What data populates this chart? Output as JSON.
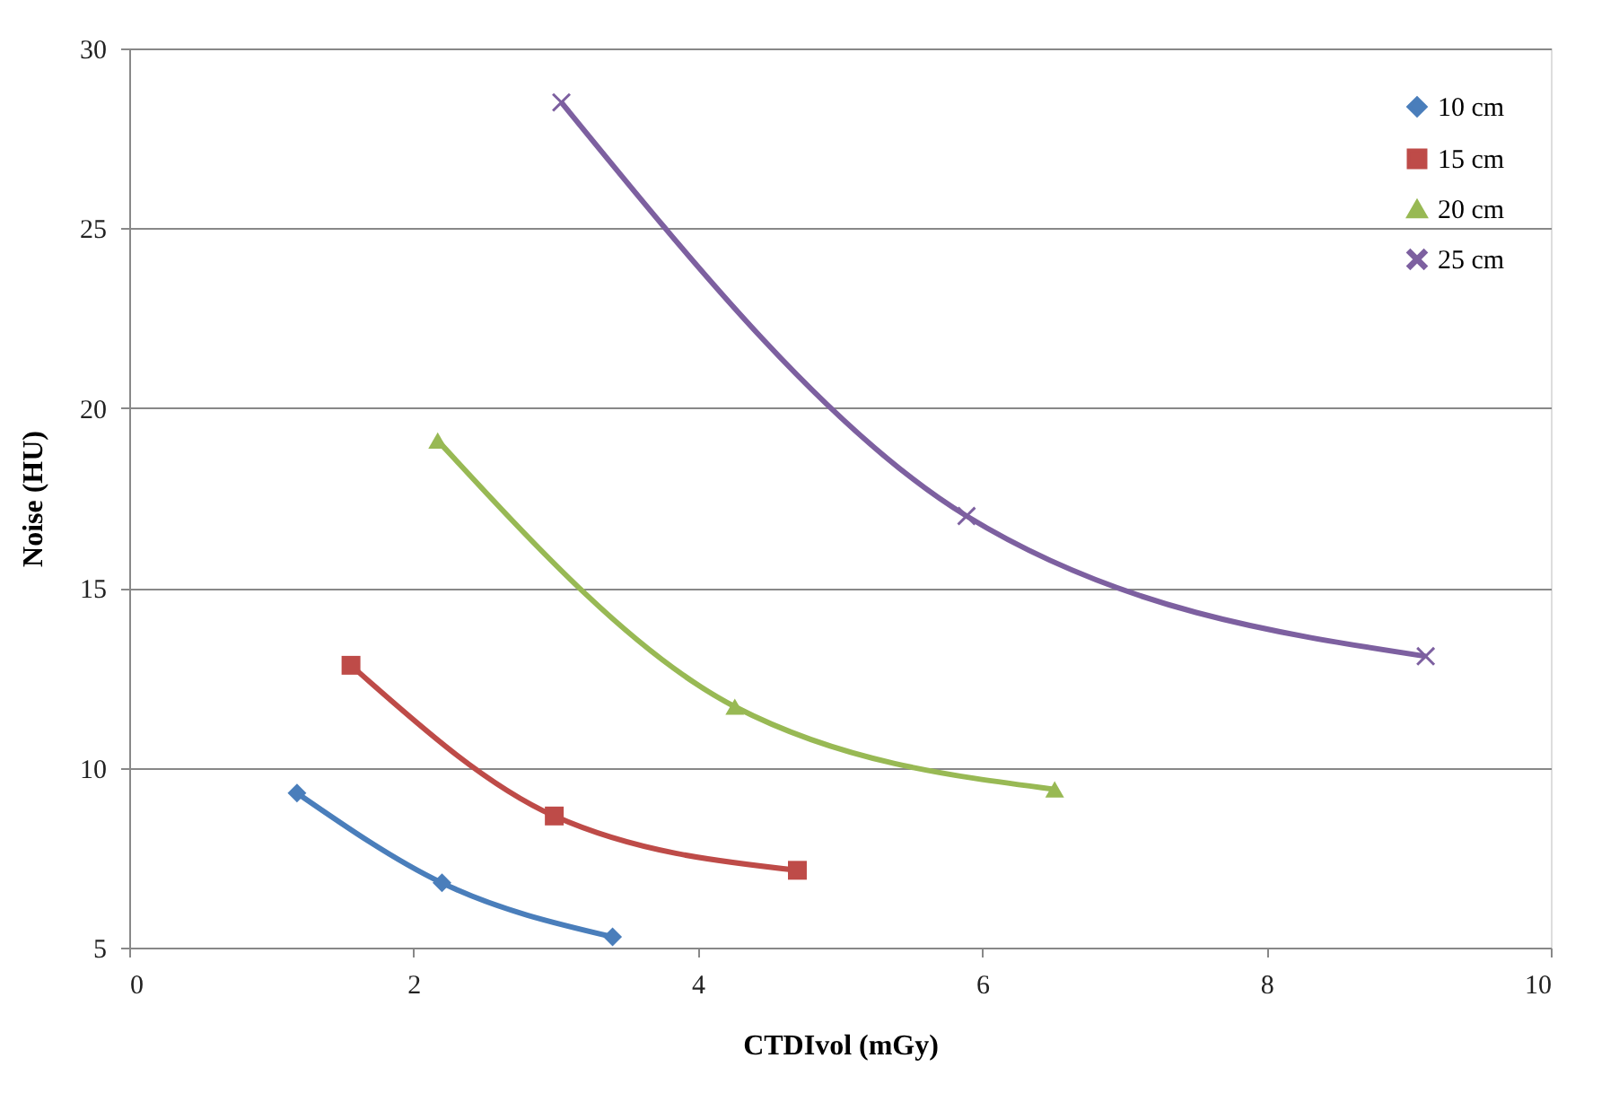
{
  "chart_data": {
    "type": "line",
    "xlabel": "CTDIvol (mGy)",
    "ylabel": "Noise (HU)",
    "xlim": [
      0,
      10
    ],
    "xticks": [
      0,
      2,
      4,
      6,
      8,
      10
    ],
    "ylim": [
      5,
      30
    ],
    "yticks": [
      5,
      10,
      15,
      20,
      25,
      30
    ],
    "grid": "y",
    "legend": "top right",
    "line_style": "solid",
    "series": [
      {
        "name": "10 cm",
        "color": "#4a7ebb",
        "marker": "diamond",
        "x": [
          1.18,
          2.2,
          3.4
        ],
        "values": [
          9.3,
          6.8,
          5.3
        ]
      },
      {
        "name": "15 cm",
        "color": "#be4b48",
        "marker": "square",
        "x": [
          1.56,
          2.99,
          4.7
        ],
        "values": [
          12.85,
          8.66,
          7.15
        ]
      },
      {
        "name": "20 cm",
        "color": "#98b954",
        "marker": "triangle",
        "x": [
          2.17,
          4.26,
          6.51
        ],
        "values": [
          19.1,
          11.7,
          9.4
        ]
      },
      {
        "name": "25 cm",
        "color": "#7d60a0",
        "marker": "cross",
        "x": [
          3.04,
          5.89,
          9.12
        ],
        "values": [
          28.5,
          17.0,
          13.1
        ]
      }
    ]
  }
}
